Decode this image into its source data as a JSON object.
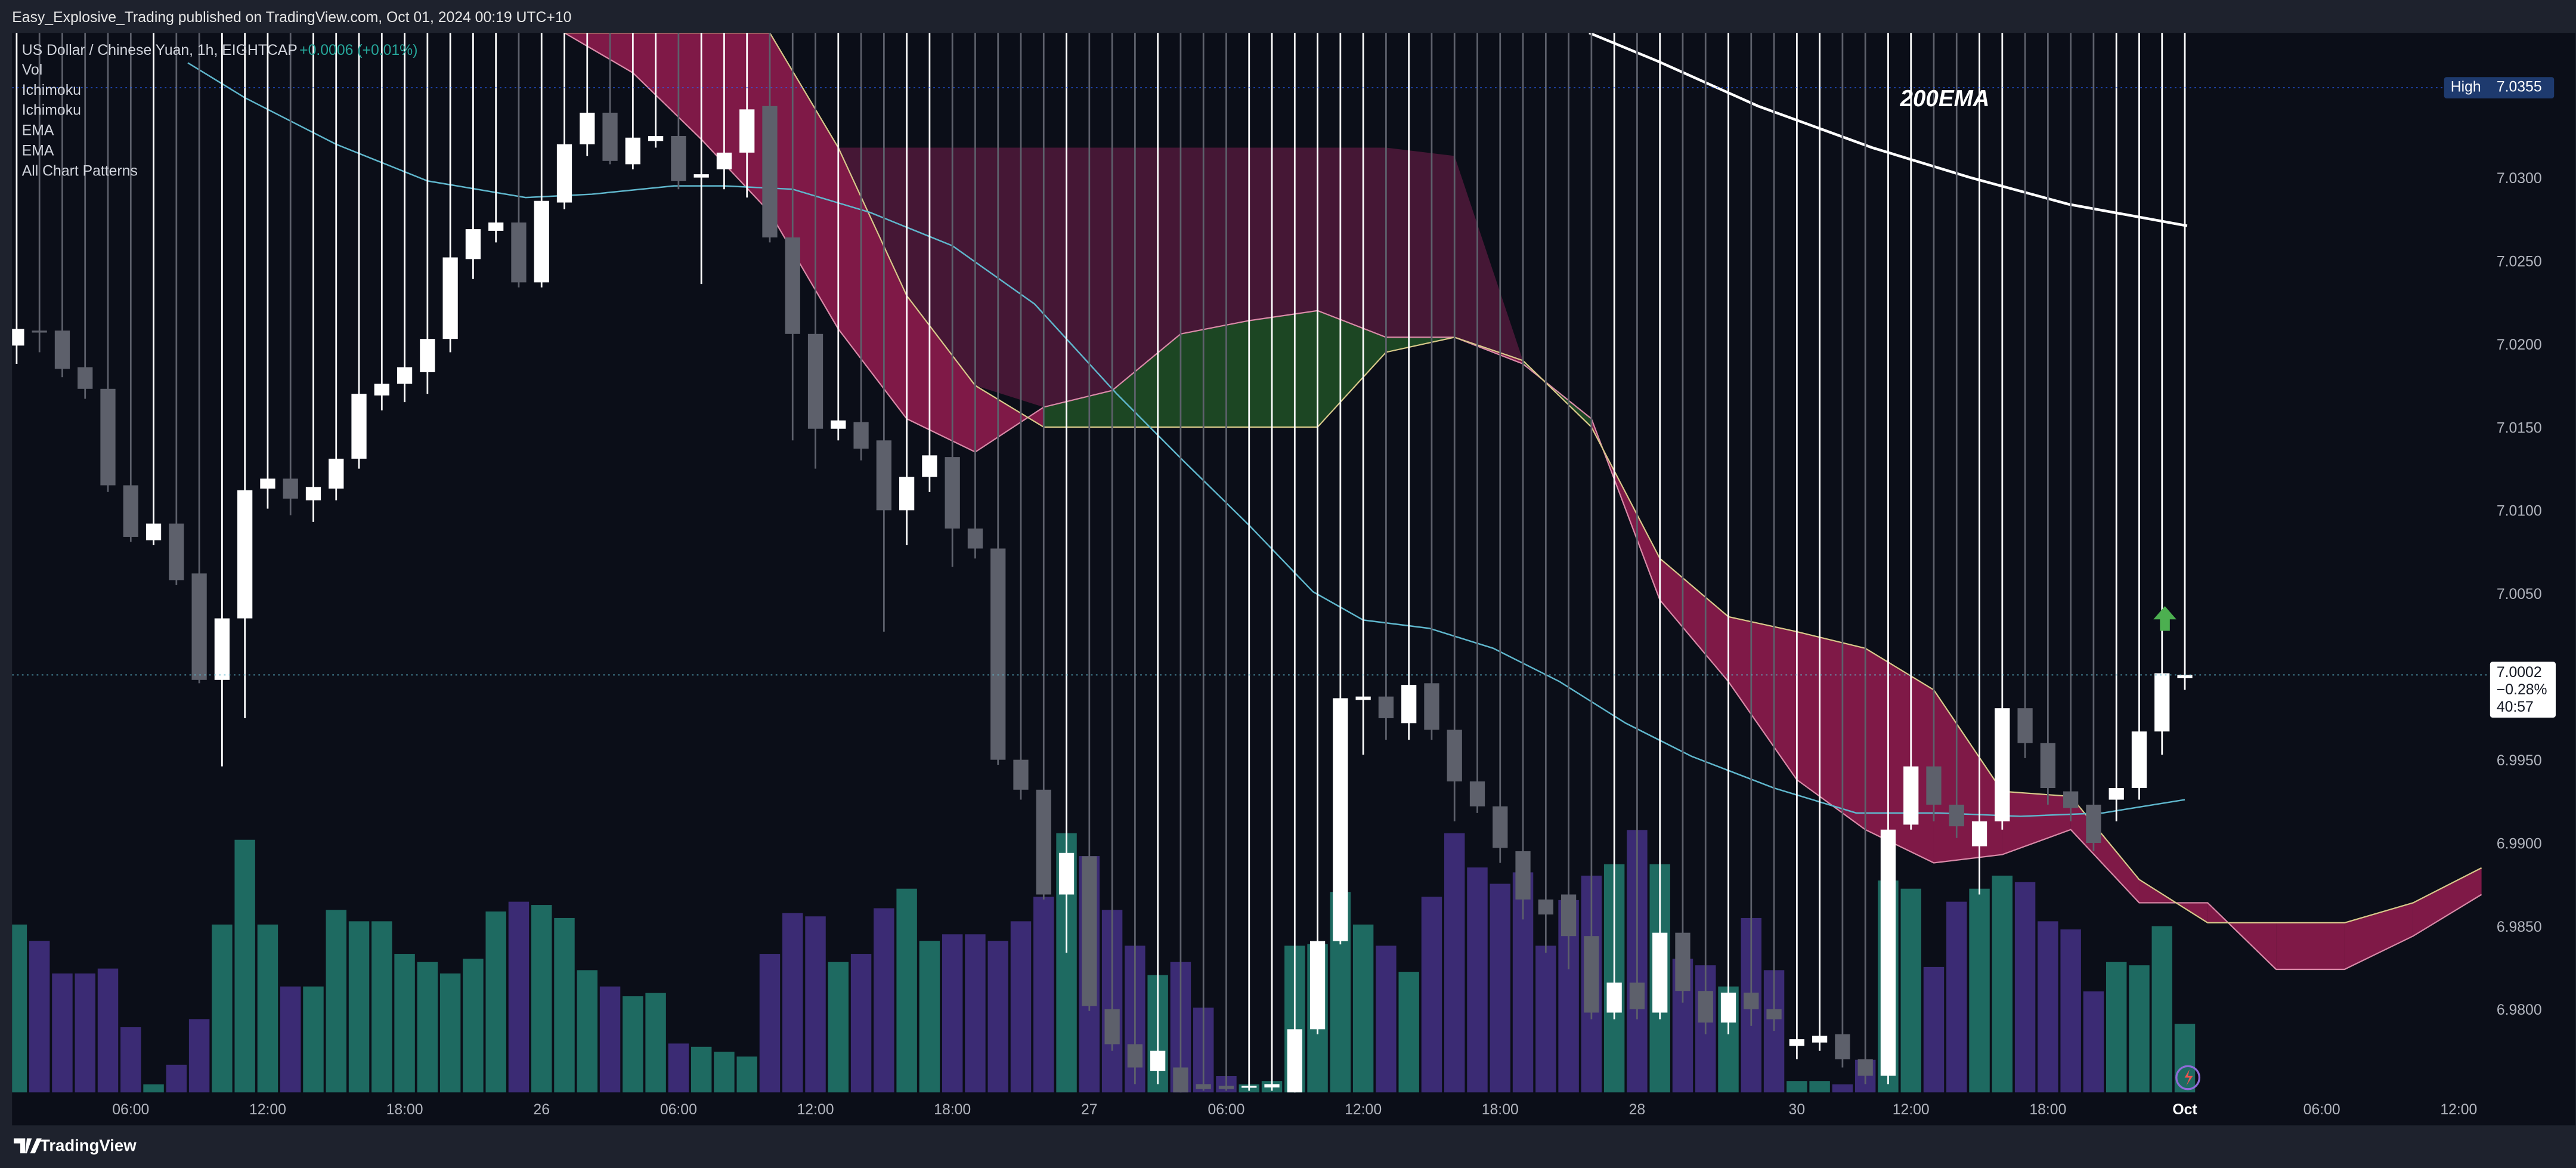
{
  "header": {
    "text": "Easy_Explosive_Trading published on TradingView.com, Oct 01, 2024 00:19 UTC+10"
  },
  "chart_data": {
    "type": "candlestick",
    "title": "US Dollar / Chinese Yuan, 1h, EIGHTCAP",
    "change": "+0.0006 (+0.01%)",
    "indicators": [
      "Vol",
      "Ichimoku",
      "Ichimoku",
      "EMA",
      "EMA",
      "All Chart Patterns"
    ],
    "annotation": "200EMA",
    "open": [
      7.02,
      7.0209,
      7.0209,
      7.0187,
      7.0174,
      7.0116,
      7.0083,
      7.0093,
      7.0063,
      6.9999,
      7.0036,
      7.0114,
      7.012,
      7.0107,
      7.0114,
      7.0132,
      7.017,
      7.0177,
      7.0184,
      7.0204,
      7.0252,
      7.0269,
      7.0274,
      7.0238,
      7.0286,
      7.0321,
      7.034,
      7.0309,
      7.0323,
      7.0326,
      7.0301,
      7.0306,
      7.0316,
      7.0344,
      7.0265,
      7.0207,
      7.015,
      7.0154,
      7.0143,
      7.0101,
      7.0121,
      7.0133,
      7.009,
      7.0078,
      6.9951,
      6.9933,
      6.987,
      6.9893,
      6.9801,
      6.978,
      6.9764,
      6.9766,
      6.9756,
      6.9755,
      6.9754,
      6.9754,
      6.9751,
      6.9789,
      6.9842,
      6.9987,
      6.9989,
      6.9973,
      6.9997,
      6.9969,
      6.9938,
      6.9923,
      6.9896,
      6.9867,
      6.987,
      6.9845,
      6.9799,
      6.9817,
      6.9799,
      6.9847,
      6.9812,
      6.9793,
      6.9811,
      6.9801,
      6.9779,
      6.9781,
      6.9786,
      6.9771,
      6.9761,
      6.9912,
      6.9947,
      6.9924,
      6.9899,
      6.9914,
      6.9982,
      6.9961,
      6.9932,
      6.9924,
      6.9927,
      6.9934,
      6.9968,
      7.0
    ],
    "high": {
      "label": "High",
      "value": 7.0355
    },
    "low": [
      7.0189,
      7.0196,
      7.0181,
      7.0168,
      7.0112,
      7.0082,
      7.008,
      7.0056,
      6.9997,
      6.9947,
      6.9976,
      7.0102,
      7.0098,
      7.0094,
      7.0107,
      7.0126,
      7.0161,
      7.0166,
      7.0171,
      7.0196,
      7.024,
      7.0262,
      7.0235,
      7.0235,
      7.0282,
      7.0314,
      7.0309,
      7.0306,
      7.0319,
      7.0294,
      7.0237,
      7.0294,
      7.0289,
      7.0262,
      7.0143,
      7.0126,
      7.0143,
      7.0131,
      7.0028,
      7.008,
      7.0112,
      7.0067,
      7.0072,
      6.9948,
      6.9927,
      6.9867,
      6.9835,
      6.98,
      6.9776,
      6.9756,
      6.9756,
      6.9751,
      6.9752,
      6.9752,
      6.9752,
      6.9752,
      6.9751,
      6.9786,
      6.984,
      6.9954,
      6.9963,
      6.9963,
      6.9963,
      6.9914,
      6.9919,
      6.9889,
      6.9855,
      6.9835,
      6.9825,
      6.9795,
      6.9795,
      6.9795,
      6.9795,
      6.9805,
      6.9786,
      6.9786,
      6.9791,
      6.9788,
      6.9771,
      6.9776,
      6.9766,
      6.9756,
      6.9756,
      6.9909,
      6.9914,
      6.9904,
      6.987,
      6.9909,
      6.9952,
      6.9924,
      6.9914,
      6.9896,
      6.9914,
      6.9927,
      6.9954,
      6.9993
    ],
    "close": [
      7.021,
      7.0208,
      7.0186,
      7.0174,
      7.0116,
      7.0085,
      7.0093,
      7.0059,
      6.9999,
      7.0036,
      7.0113,
      7.012,
      7.0108,
      7.0115,
      7.0132,
      7.0171,
      7.0177,
      7.0187,
      7.0204,
      7.0253,
      7.027,
      7.0274,
      7.0238,
      7.0287,
      7.0321,
      7.034,
      7.0311,
      7.0325,
      7.0326,
      7.0299,
      7.0303,
      7.0316,
      7.0342,
      7.0265,
      7.0207,
      7.015,
      7.0155,
      7.0138,
      7.0101,
      7.0121,
      7.0134,
      7.009,
      7.0078,
      6.9951,
      6.9933,
      6.987,
      6.9895,
      6.9803,
      6.978,
      6.9766,
      6.9776,
      6.9751,
      6.9753,
      6.9753,
      6.9755,
      6.9756,
      6.9789,
      6.9842,
      6.9988,
      6.9989,
      6.9976,
      6.9996,
      6.9969,
      6.9938,
      6.9923,
      6.9898,
      6.9867,
      6.9858,
      6.9845,
      6.9799,
      6.9817,
      6.9801,
      6.9847,
      6.9812,
      6.9793,
      6.9811,
      6.9801,
      6.9795,
      6.9783,
      6.9785,
      6.9771,
      6.9761,
      6.9909,
      6.9947,
      6.9924,
      6.9911,
      6.9914,
      6.9982,
      6.9961,
      6.9934,
      6.9922,
      6.9901,
      6.9934,
      6.9968,
      7.0003,
      7.0002
    ],
    "up_color": "#ffffff",
    "down_color": "#5d606b",
    "volume": {
      "values": [
        103,
        93,
        73,
        73,
        76,
        40,
        5,
        17,
        45,
        103,
        155,
        103,
        65,
        65,
        112,
        105,
        105,
        85,
        80,
        73,
        82,
        111,
        117,
        115,
        107,
        75,
        65,
        59,
        61,
        30,
        28,
        25,
        22,
        85,
        110,
        108,
        80,
        85,
        113,
        125,
        93,
        97,
        97,
        93,
        105,
        120,
        159,
        145,
        112,
        90,
        72,
        80,
        52,
        10,
        5,
        7,
        90,
        91,
        123,
        103,
        90,
        74,
        120,
        159,
        138,
        128,
        135,
        90,
        118,
        133,
        140,
        161,
        140,
        82,
        78,
        65,
        107,
        75,
        7,
        7,
        5,
        20,
        130,
        125,
        77,
        117,
        125,
        133,
        129,
        105,
        100,
        62,
        80,
        78,
        102,
        42
      ],
      "vlim": [
        0,
        650
      ],
      "up_color": "#1e6a61",
      "down_color": "#3b2b74"
    },
    "lines": [
      {
        "color": "#5fb6cc",
        "x": [
          7.5,
          10,
          14,
          18,
          22.3,
          25.2,
          28.8,
          31,
          34,
          37.4,
          41,
          44.6,
          48.2,
          51.1,
          54,
          56.8,
          59,
          61.9,
          64.7,
          67.6,
          70.5,
          73.4,
          77,
          80.6,
          84.2,
          87.8,
          91.4,
          95
        ],
        "values": [
          7.037,
          7.0349,
          7.0321,
          7.0299,
          7.0289,
          7.0291,
          7.0296,
          7.0296,
          7.0294,
          7.028,
          7.026,
          7.0225,
          7.0171,
          7.0131,
          7.0092,
          7.0052,
          7.0035,
          7.003,
          7.0018,
          6.9998,
          6.9973,
          6.9953,
          6.9934,
          6.9919,
          6.9919,
          6.9917,
          6.9919,
          6.9927
        ]
      },
      {
        "color": "#ffffff",
        "x": [
          68.9,
          71.9,
          76.3,
          81.3,
          85.6,
          89.9,
          95.1
        ],
        "values": [
          7.0388,
          7.0371,
          7.0344,
          7.0319,
          7.0301,
          7.0285,
          7.0272
        ]
      }
    ],
    "clouds": [
      {
        "x": [
          33,
          36,
          39,
          42,
          45,
          48,
          51,
          54,
          57,
          60,
          63,
          66,
          69
        ],
        "span_a": [
          7.0319,
          7.0319,
          7.023,
          7.0176,
          7.0163,
          7.0173,
          7.0207,
          7.0215,
          7.0221,
          7.0205,
          7.0205,
          7.0191,
          7.0151
        ],
        "span_b": [
          7.0319,
          7.0319,
          7.0319,
          7.0319,
          7.0319,
          7.0319,
          7.0319,
          7.0319,
          7.0319,
          7.0319,
          7.0314,
          7.0191,
          7.0151
        ],
        "up_color": "#1b3d20",
        "down_color": "#4b1838"
      },
      {
        "x": [
          24,
          27,
          30,
          33,
          36,
          39,
          42,
          45,
          48,
          51,
          54,
          57,
          60,
          63,
          66,
          69,
          72,
          75,
          78,
          81,
          84,
          87,
          90,
          93,
          96,
          99,
          102,
          105,
          108
        ],
        "span_a": [
          7.0388,
          7.0364,
          7.0324,
          7.028,
          7.021,
          7.0156,
          7.0136,
          7.0163,
          7.0173,
          7.0207,
          7.0215,
          7.0221,
          7.0205,
          7.0205,
          7.0189,
          7.0156,
          7.0047,
          6.9998,
          6.9939,
          6.9909,
          6.9889,
          6.9894,
          6.9909,
          6.9865,
          6.9865,
          6.9825,
          6.9825,
          6.9845,
          6.987
        ],
        "span_b": [
          7.0388,
          7.0388,
          7.0388,
          7.0388,
          7.0319,
          7.023,
          7.0176,
          7.0151,
          7.0151,
          7.0151,
          7.0151,
          7.0151,
          7.0196,
          7.0205,
          7.0191,
          7.0151,
          7.0072,
          7.0037,
          7.0028,
          7.0018,
          6.9993,
          6.9932,
          6.9929,
          6.9879,
          6.9853,
          6.9853,
          6.9853,
          6.9865,
          6.9886
        ],
        "up_color": "#1e4d25",
        "down_color": "#8c1b4c",
        "line_colors": [
          "#d98aa8",
          "#d8c98a"
        ]
      }
    ],
    "xlim": [
      -0.2,
      108.3
    ],
    "xticks": [
      {
        "value": 5,
        "label": "06:00"
      },
      {
        "value": 11,
        "label": "12:00"
      },
      {
        "value": 17,
        "label": "18:00"
      },
      {
        "value": 23,
        "label": "26"
      },
      {
        "value": 29,
        "label": "06:00"
      },
      {
        "value": 35,
        "label": "12:00"
      },
      {
        "value": 41,
        "label": "18:00"
      },
      {
        "value": 47,
        "label": "27"
      },
      {
        "value": 53,
        "label": "06:00"
      },
      {
        "value": 59,
        "label": "12:00"
      },
      {
        "value": 65,
        "label": "18:00"
      },
      {
        "value": 71,
        "label": "28"
      },
      {
        "value": 78,
        "label": "30"
      },
      {
        "value": 83,
        "label": "12:00"
      },
      {
        "value": 89,
        "label": "18:00"
      },
      {
        "value": 95,
        "label": "Oct"
      },
      {
        "value": 101,
        "label": "06:00"
      },
      {
        "value": 107,
        "label": "12:00"
      }
    ],
    "ylim": [
      6.9751,
      7.0388
    ],
    "yticks": [
      {
        "value": 6.98,
        "label": "6.9800"
      },
      {
        "value": 6.985,
        "label": "6.9850"
      },
      {
        "value": 6.99,
        "label": "6.9900"
      },
      {
        "value": 6.995,
        "label": "6.9950"
      },
      {
        "value": 7.005,
        "label": "7.0050"
      },
      {
        "value": 7.01,
        "label": "7.0100"
      },
      {
        "value": 7.015,
        "label": "7.0150"
      },
      {
        "value": 7.02,
        "label": "7.0200"
      },
      {
        "value": 7.025,
        "label": "7.0250"
      },
      {
        "value": 7.03,
        "label": "7.0300"
      }
    ],
    "grid": false,
    "last_price": {
      "value": 7.0002,
      "change": "−0.28%",
      "countdown": "40:57"
    }
  },
  "footer": {
    "brand": "TradingView"
  }
}
